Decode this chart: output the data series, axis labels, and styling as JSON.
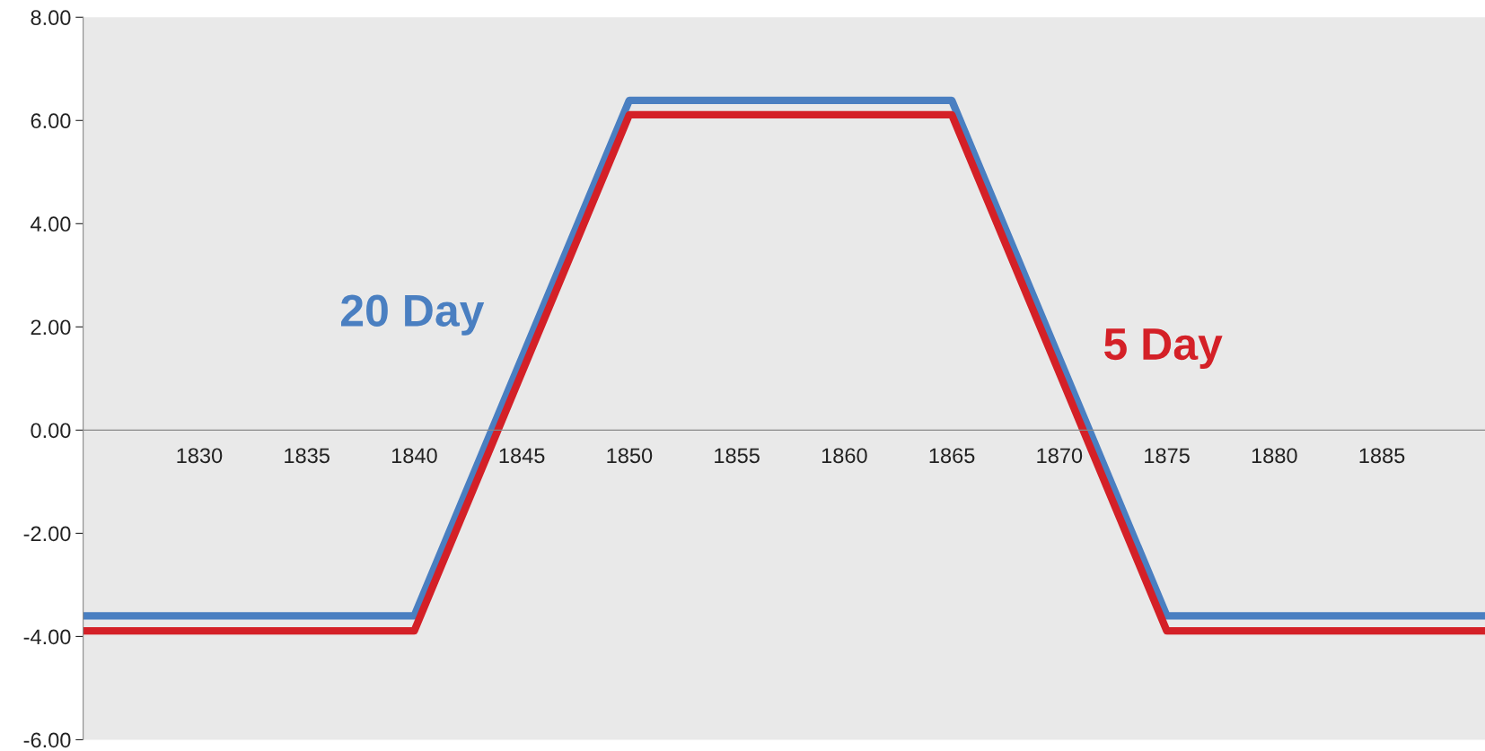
{
  "chart_data": {
    "type": "line",
    "x": [
      1824.6,
      1840,
      1850,
      1865,
      1875,
      1889.8
    ],
    "series": [
      {
        "name": "20 Day",
        "color": "#4a7fc1",
        "values": [
          -3.6,
          -3.6,
          6.39,
          6.39,
          -3.6,
          -3.6
        ]
      },
      {
        "name": "5 Day",
        "color": "#d42027",
        "values": [
          -3.89,
          -3.89,
          6.11,
          6.11,
          -3.89,
          -3.89
        ]
      }
    ],
    "xlim": [
      1824.6,
      1889.8
    ],
    "xticks": [
      1830,
      1835,
      1840,
      1845,
      1850,
      1855,
      1860,
      1865,
      1870,
      1875,
      1880,
      1885
    ],
    "ylim": [
      -6,
      8
    ],
    "yticks": [
      {
        "value": -6,
        "label": "-6.00"
      },
      {
        "value": -4,
        "label": "-4.00"
      },
      {
        "value": -2,
        "label": "-2.00"
      },
      {
        "value": 0,
        "label": "0.00"
      },
      {
        "value": 2,
        "label": "2.00"
      },
      {
        "value": 4,
        "label": "4.00"
      },
      {
        "value": 6,
        "label": "6.00"
      },
      {
        "value": 8,
        "label": "8.00"
      }
    ],
    "grid": false,
    "legend": false,
    "marker": "none",
    "line_style": "solid"
  }
}
